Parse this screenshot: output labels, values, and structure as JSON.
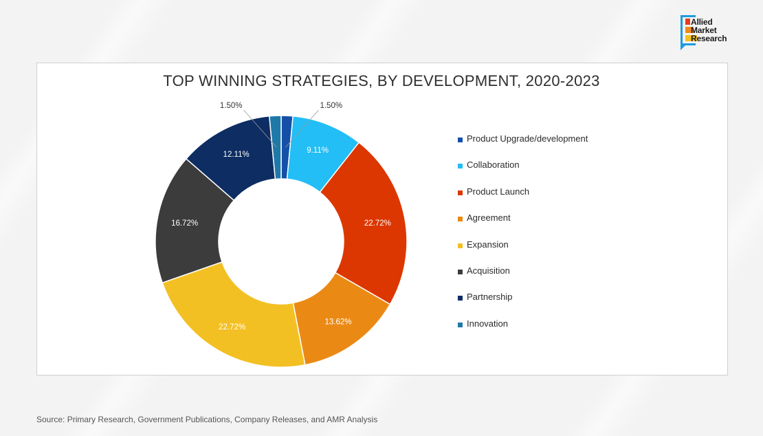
{
  "brand": {
    "lines": [
      "Allied",
      "Market",
      "Research"
    ],
    "colors": [
      "#e53d1c",
      "#f08a1c",
      "#f5c222",
      "#1e9be0"
    ]
  },
  "chart_data": {
    "type": "pie",
    "donut": true,
    "title": "TOP WINNING STRATEGIES, BY DEVELOPMENT, 2020-2023",
    "legend_position": "right",
    "series": [
      {
        "name": "Product Upgrade/development",
        "value": 1.5,
        "label": "1.50%",
        "color": "#1550a8"
      },
      {
        "name": "Collaboration",
        "value": 9.11,
        "label": "9.11%",
        "color": "#22bef5"
      },
      {
        "name": "Product Launch",
        "value": 22.72,
        "label": "22.72%",
        "color": "#dc3700"
      },
      {
        "name": "Agreement",
        "value": 13.62,
        "label": "13.62%",
        "color": "#ea8a15"
      },
      {
        "name": "Expansion",
        "value": 22.72,
        "label": "22.72%",
        "color": "#f3c024"
      },
      {
        "name": "Acquisition",
        "value": 16.72,
        "label": "16.72%",
        "color": "#3c3c3c"
      },
      {
        "name": "Partnership",
        "value": 12.11,
        "label": "12.11%",
        "color": "#0d2d63"
      },
      {
        "name": "Innovation",
        "value": 1.5,
        "label": "1.50%",
        "color": "#1f79a8"
      }
    ]
  },
  "source": "Source: Primary Research, Government Publications, Company Releases, and AMR Analysis"
}
